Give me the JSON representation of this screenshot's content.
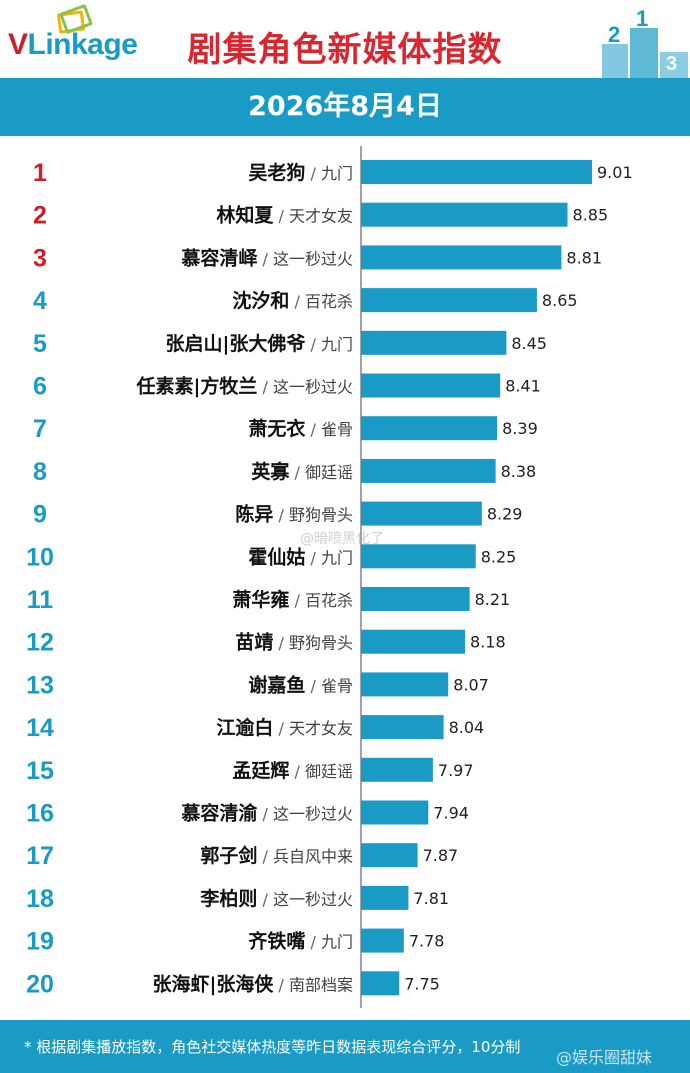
{
  "header": {
    "logo_text": "VLinkage",
    "logo_v": "V",
    "logo_rest": "Linkage",
    "title": "剧集角色新媒体指数",
    "date": "2026年8月4日"
  },
  "colors": {
    "brand_blue": "#1a9bc6",
    "bar_blue": "#1a9bc6",
    "title_red": "#d9262f",
    "top3_rank_red": "#cc2027",
    "rank_blue": "#1a9bc6"
  },
  "chart_data": {
    "type": "bar",
    "orientation": "horizontal",
    "ranks": [
      "1",
      "2",
      "3",
      "4",
      "5",
      "6",
      "7",
      "8",
      "9",
      "10",
      "11",
      "12",
      "13",
      "14",
      "15",
      "16",
      "17",
      "18",
      "19",
      "20"
    ],
    "characters": [
      "吴老狗",
      "林知夏",
      "慕容清峄",
      "沈汐和",
      "张启山|张大佛爷",
      "任素素|方牧兰",
      "萧无衣",
      "英寡",
      "陈异",
      "霍仙姑",
      "萧华雍",
      "苗靖",
      "谢嘉鱼",
      "江逾白",
      "孟廷辉",
      "慕容清渝",
      "郭子剑",
      "李柏则",
      "齐铁嘴",
      "张海虾|张海侠"
    ],
    "dramas": [
      "九门",
      "天才女友",
      "这一秒过火",
      "百花杀",
      "九门",
      "这一秒过火",
      "雀骨",
      "御廷谣",
      "野狗骨头",
      "九门",
      "百花杀",
      "野狗骨头",
      "雀骨",
      "天才女友",
      "御廷谣",
      "这一秒过火",
      "兵自风中来",
      "这一秒过火",
      "九门",
      "南部档案"
    ],
    "values": [
      9.01,
      8.85,
      8.81,
      8.65,
      8.45,
      8.41,
      8.39,
      8.38,
      8.29,
      8.25,
      8.21,
      8.18,
      8.07,
      8.04,
      7.97,
      7.94,
      7.87,
      7.81,
      7.78,
      7.75
    ],
    "value_labels": [
      "9.01",
      "8.85",
      "8.81",
      "8.65",
      "8.45",
      "8.41",
      "8.39",
      "8.38",
      "8.29",
      "8.25",
      "8.21",
      "8.18",
      "8.07",
      "8.04",
      "7.97",
      "7.94",
      "7.87",
      "7.81",
      "7.78",
      "7.75"
    ],
    "separator": "/",
    "grid": false,
    "legend": "none"
  },
  "footer": {
    "note": "* 根据剧集播放指数，角色社交媒体热度等昨日数据表现综合评分，10分制",
    "watermark": "@娱乐圈甜妹"
  },
  "overlay": {
    "mid_watermark": "@暗喷黑化了"
  }
}
